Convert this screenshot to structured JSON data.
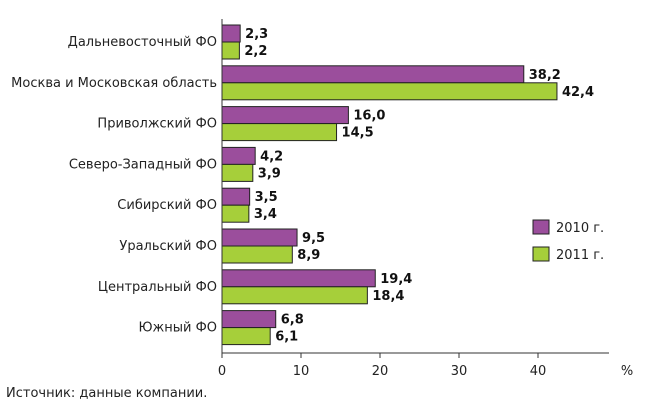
{
  "chart_data": {
    "type": "bar",
    "orientation": "horizontal",
    "categories": [
      "Дальневосточный ФО",
      "Москва и Московская область",
      "Приволжский ФО",
      "Северо-Западный ФО",
      "Сибирский ФО",
      "Уральский ФО",
      "Центральный ФО",
      "Южный ФО"
    ],
    "series": [
      {
        "name": "2010 г.",
        "color": "#9b4e9c",
        "values": [
          2.3,
          38.2,
          16.0,
          4.2,
          3.5,
          9.5,
          19.4,
          6.8
        ],
        "labels": [
          "2,3",
          "38,2",
          "16,0",
          "4,2",
          "3,5",
          "9,5",
          "19,4",
          "6,8"
        ]
      },
      {
        "name": "2011 г.",
        "color": "#a6cf3a",
        "values": [
          2.2,
          42.4,
          14.5,
          3.9,
          3.4,
          8.9,
          18.4,
          6.1
        ],
        "labels": [
          "2,2",
          "42,4",
          "14,5",
          "3,9",
          "3,4",
          "8,9",
          "18,4",
          "6,1"
        ]
      }
    ],
    "xlim": [
      0,
      50
    ],
    "x_ticks": [
      0,
      10,
      20,
      30,
      40
    ],
    "x_unit": "%",
    "legend_position": "right",
    "grid": false
  },
  "source_note": "Источник: данные компании."
}
